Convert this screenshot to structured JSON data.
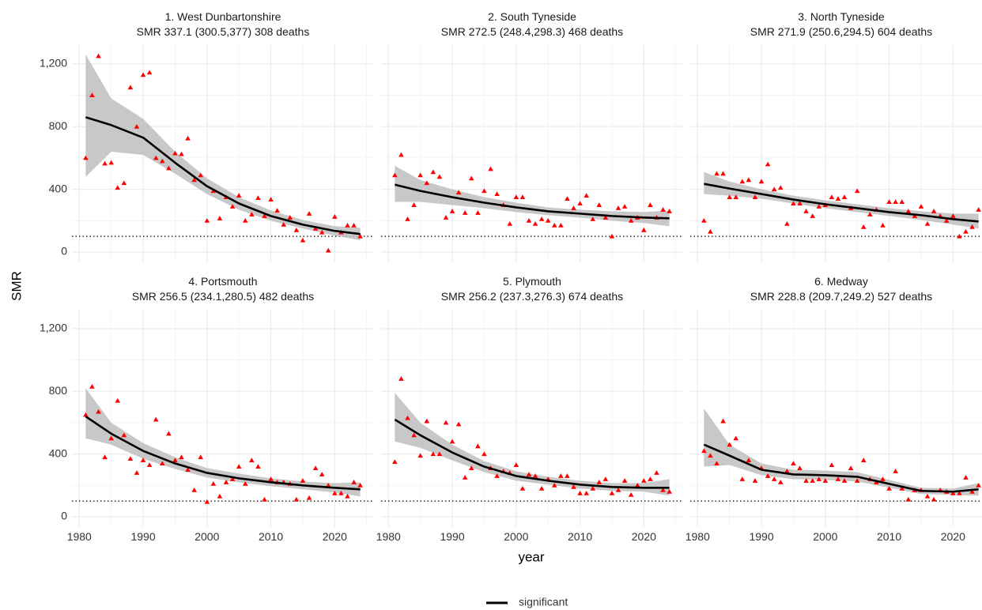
{
  "chart_data": {
    "type": "scatter",
    "ylabel": "SMR",
    "xlabel": "year",
    "legend": [
      {
        "name": "significant",
        "color": "#000000"
      }
    ],
    "point_color": "#ff0000",
    "band_color": "#bebebe",
    "reference_line": 100,
    "grid": true,
    "xlim": [
      1978.85,
      2026.15
    ],
    "ylim": [
      -63,
      1323
    ],
    "xticks": [
      1980,
      1990,
      2000,
      2010,
      2020
    ],
    "minor_xticks": [
      1985,
      1995,
      2005,
      2015,
      2025
    ],
    "yticks": [
      0,
      400,
      800,
      {
        "value": 1200,
        "label": "1,200"
      }
    ],
    "minor_yticks": [
      200,
      600,
      1000
    ],
    "panels": [
      {
        "title": "1. West Dunbartonshire",
        "subtitle": "SMR 337.1 (300.5,377) 308 deaths",
        "x": [
          1981,
          1982,
          1983,
          1984,
          1985,
          1986,
          1987,
          1988,
          1989,
          1990,
          1991,
          1992,
          1993,
          1994,
          1995,
          1996,
          1997,
          1998,
          1999,
          2000,
          2001,
          2002,
          2003,
          2004,
          2005,
          2006,
          2007,
          2008,
          2009,
          2010,
          2011,
          2012,
          2013,
          2014,
          2015,
          2016,
          2017,
          2018,
          2019,
          2020,
          2021,
          2022,
          2023,
          2024
        ],
        "values": [
          600,
          1000,
          1250,
          565,
          570,
          410,
          440,
          1050,
          800,
          1130,
          1145,
          600,
          580,
          535,
          630,
          625,
          725,
          460,
          490,
          200,
          390,
          215,
          350,
          290,
          360,
          200,
          240,
          345,
          230,
          335,
          265,
          175,
          220,
          140,
          75,
          245,
          150,
          125,
          10,
          225,
          125,
          170,
          170,
          100
        ],
        "trend": {
          "x": [
            1981,
            1985,
            1990,
            1995,
            2000,
            2005,
            2010,
            2015,
            2020,
            2024
          ],
          "values": [
            860,
            810,
            730,
            570,
            420,
            310,
            230,
            175,
            135,
            115
          ],
          "lower": [
            480,
            640,
            620,
            500,
            370,
            270,
            200,
            150,
            105,
            75
          ],
          "upper": [
            1260,
            980,
            850,
            640,
            470,
            350,
            265,
            205,
            165,
            155
          ]
        }
      },
      {
        "title": "2. South Tyneside",
        "subtitle": "SMR 272.5 (248.4,298.3) 468 deaths",
        "x": [
          1981,
          1982,
          1983,
          1984,
          1985,
          1986,
          1987,
          1988,
          1989,
          1990,
          1991,
          1992,
          1993,
          1994,
          1995,
          1996,
          1997,
          1998,
          1999,
          2000,
          2001,
          2002,
          2003,
          2004,
          2005,
          2006,
          2007,
          2008,
          2009,
          2010,
          2011,
          2012,
          2013,
          2014,
          2015,
          2016,
          2017,
          2018,
          2019,
          2020,
          2021,
          2022,
          2023,
          2024
        ],
        "values": [
          490,
          620,
          210,
          300,
          490,
          440,
          510,
          480,
          220,
          260,
          380,
          250,
          470,
          250,
          390,
          530,
          370,
          300,
          180,
          350,
          350,
          200,
          180,
          210,
          200,
          170,
          170,
          340,
          280,
          310,
          360,
          210,
          300,
          220,
          100,
          280,
          290,
          200,
          220,
          140,
          300,
          220,
          270,
          260
        ],
        "trend": {
          "x": [
            1981,
            1985,
            1990,
            1995,
            2000,
            2005,
            2010,
            2015,
            2020,
            2024
          ],
          "values": [
            430,
            390,
            350,
            315,
            285,
            260,
            245,
            230,
            220,
            215
          ],
          "lower": [
            320,
            320,
            300,
            280,
            255,
            235,
            220,
            200,
            185,
            165
          ],
          "upper": [
            550,
            460,
            400,
            350,
            315,
            285,
            270,
            260,
            255,
            265
          ]
        }
      },
      {
        "title": "3. North Tyneside",
        "subtitle": "SMR 271.9 (250.6,294.5) 604 deaths",
        "x": [
          1981,
          1982,
          1983,
          1984,
          1985,
          1986,
          1987,
          1988,
          1989,
          1990,
          1991,
          1992,
          1993,
          1994,
          1995,
          1996,
          1997,
          1998,
          1999,
          2000,
          2001,
          2002,
          2003,
          2004,
          2005,
          2006,
          2007,
          2008,
          2009,
          2010,
          2011,
          2012,
          2013,
          2014,
          2015,
          2016,
          2017,
          2018,
          2019,
          2020,
          2021,
          2022,
          2023,
          2024
        ],
        "values": [
          200,
          130,
          500,
          500,
          350,
          350,
          450,
          460,
          350,
          450,
          560,
          400,
          410,
          180,
          310,
          310,
          260,
          230,
          290,
          300,
          350,
          340,
          350,
          280,
          390,
          160,
          240,
          270,
          170,
          320,
          320,
          320,
          260,
          230,
          290,
          180,
          260,
          230,
          200,
          230,
          100,
          130,
          160,
          270
        ],
        "trend": {
          "x": [
            1981,
            1985,
            1990,
            1995,
            2000,
            2005,
            2010,
            2015,
            2020,
            2024
          ],
          "values": [
            435,
            405,
            370,
            335,
            305,
            280,
            255,
            235,
            210,
            195
          ],
          "lower": [
            370,
            360,
            340,
            310,
            280,
            255,
            230,
            205,
            175,
            150
          ],
          "upper": [
            510,
            450,
            400,
            360,
            330,
            305,
            280,
            260,
            245,
            245
          ]
        }
      },
      {
        "title": "4. Portsmouth",
        "subtitle": "SMR 256.5 (234.1,280.5) 482 deaths",
        "x": [
          1981,
          1982,
          1983,
          1984,
          1985,
          1986,
          1987,
          1988,
          1989,
          1990,
          1991,
          1992,
          1993,
          1994,
          1995,
          1996,
          1997,
          1998,
          1999,
          2000,
          2001,
          2002,
          2003,
          2004,
          2005,
          2006,
          2007,
          2008,
          2009,
          2010,
          2011,
          2012,
          2013,
          2014,
          2015,
          2016,
          2017,
          2018,
          2019,
          2020,
          2021,
          2022,
          2023,
          2024
        ],
        "values": [
          650,
          830,
          670,
          380,
          500,
          740,
          520,
          370,
          280,
          360,
          330,
          620,
          340,
          530,
          360,
          380,
          300,
          170,
          380,
          95,
          210,
          130,
          220,
          240,
          320,
          210,
          360,
          320,
          110,
          240,
          220,
          220,
          210,
          110,
          230,
          120,
          310,
          270,
          200,
          150,
          150,
          130,
          220,
          200
        ],
        "trend": {
          "x": [
            1981,
            1985,
            1990,
            1995,
            2000,
            2005,
            2010,
            2015,
            2020,
            2024
          ],
          "values": [
            640,
            530,
            420,
            340,
            280,
            245,
            220,
            200,
            185,
            175
          ],
          "lower": [
            500,
            460,
            370,
            305,
            250,
            220,
            195,
            175,
            155,
            130
          ],
          "upper": [
            820,
            600,
            470,
            380,
            310,
            275,
            245,
            225,
            215,
            220
          ]
        }
      },
      {
        "title": "5. Plymouth",
        "subtitle": "SMR 256.2 (237.3,276.3) 674 deaths",
        "x": [
          1981,
          1982,
          1983,
          1984,
          1985,
          1986,
          1987,
          1988,
          1989,
          1990,
          1991,
          1992,
          1993,
          1994,
          1995,
          1996,
          1997,
          1998,
          1999,
          2000,
          2001,
          2002,
          2003,
          2004,
          2005,
          2006,
          2007,
          2008,
          2009,
          2010,
          2011,
          2012,
          2013,
          2014,
          2015,
          2016,
          2017,
          2018,
          2019,
          2020,
          2021,
          2022,
          2023,
          2024
        ],
        "values": [
          350,
          880,
          630,
          520,
          390,
          610,
          400,
          400,
          600,
          480,
          590,
          250,
          310,
          450,
          400,
          310,
          260,
          290,
          280,
          330,
          180,
          270,
          260,
          180,
          240,
          200,
          260,
          260,
          190,
          150,
          150,
          180,
          220,
          240,
          150,
          170,
          230,
          140,
          200,
          230,
          240,
          280,
          170,
          160
        ],
        "trend": {
          "x": [
            1981,
            1985,
            1990,
            1995,
            2000,
            2005,
            2010,
            2015,
            2020,
            2024
          ],
          "values": [
            620,
            520,
            410,
            320,
            260,
            230,
            205,
            190,
            185,
            185
          ],
          "lower": [
            480,
            440,
            360,
            285,
            230,
            205,
            180,
            165,
            160,
            135
          ],
          "upper": [
            790,
            600,
            460,
            355,
            290,
            255,
            230,
            215,
            215,
            240
          ]
        }
      },
      {
        "title": "6. Medway",
        "subtitle": "SMR 228.8 (209.7,249.2) 527 deaths",
        "x": [
          1981,
          1982,
          1983,
          1984,
          1985,
          1986,
          1987,
          1988,
          1989,
          1990,
          1991,
          1992,
          1993,
          1994,
          1995,
          1996,
          1997,
          1998,
          1999,
          2000,
          2001,
          2002,
          2003,
          2004,
          2005,
          2006,
          2007,
          2008,
          2009,
          2010,
          2011,
          2012,
          2013,
          2014,
          2015,
          2016,
          2017,
          2018,
          2019,
          2020,
          2021,
          2022,
          2023,
          2024
        ],
        "values": [
          420,
          390,
          340,
          610,
          460,
          500,
          240,
          360,
          230,
          310,
          260,
          240,
          220,
          290,
          340,
          310,
          230,
          230,
          240,
          230,
          330,
          240,
          230,
          310,
          230,
          360,
          240,
          220,
          240,
          180,
          290,
          180,
          110,
          170,
          170,
          130,
          110,
          170,
          160,
          150,
          150,
          250,
          160,
          200
        ],
        "trend": {
          "x": [
            1981,
            1985,
            1990,
            1995,
            2000,
            2005,
            2010,
            2015,
            2020,
            2024
          ],
          "values": [
            460,
            390,
            300,
            270,
            265,
            255,
            210,
            165,
            160,
            175
          ],
          "lower": [
            320,
            330,
            265,
            240,
            235,
            225,
            185,
            145,
            140,
            135
          ],
          "upper": [
            690,
            460,
            340,
            300,
            295,
            285,
            235,
            185,
            180,
            215
          ]
        }
      }
    ]
  }
}
